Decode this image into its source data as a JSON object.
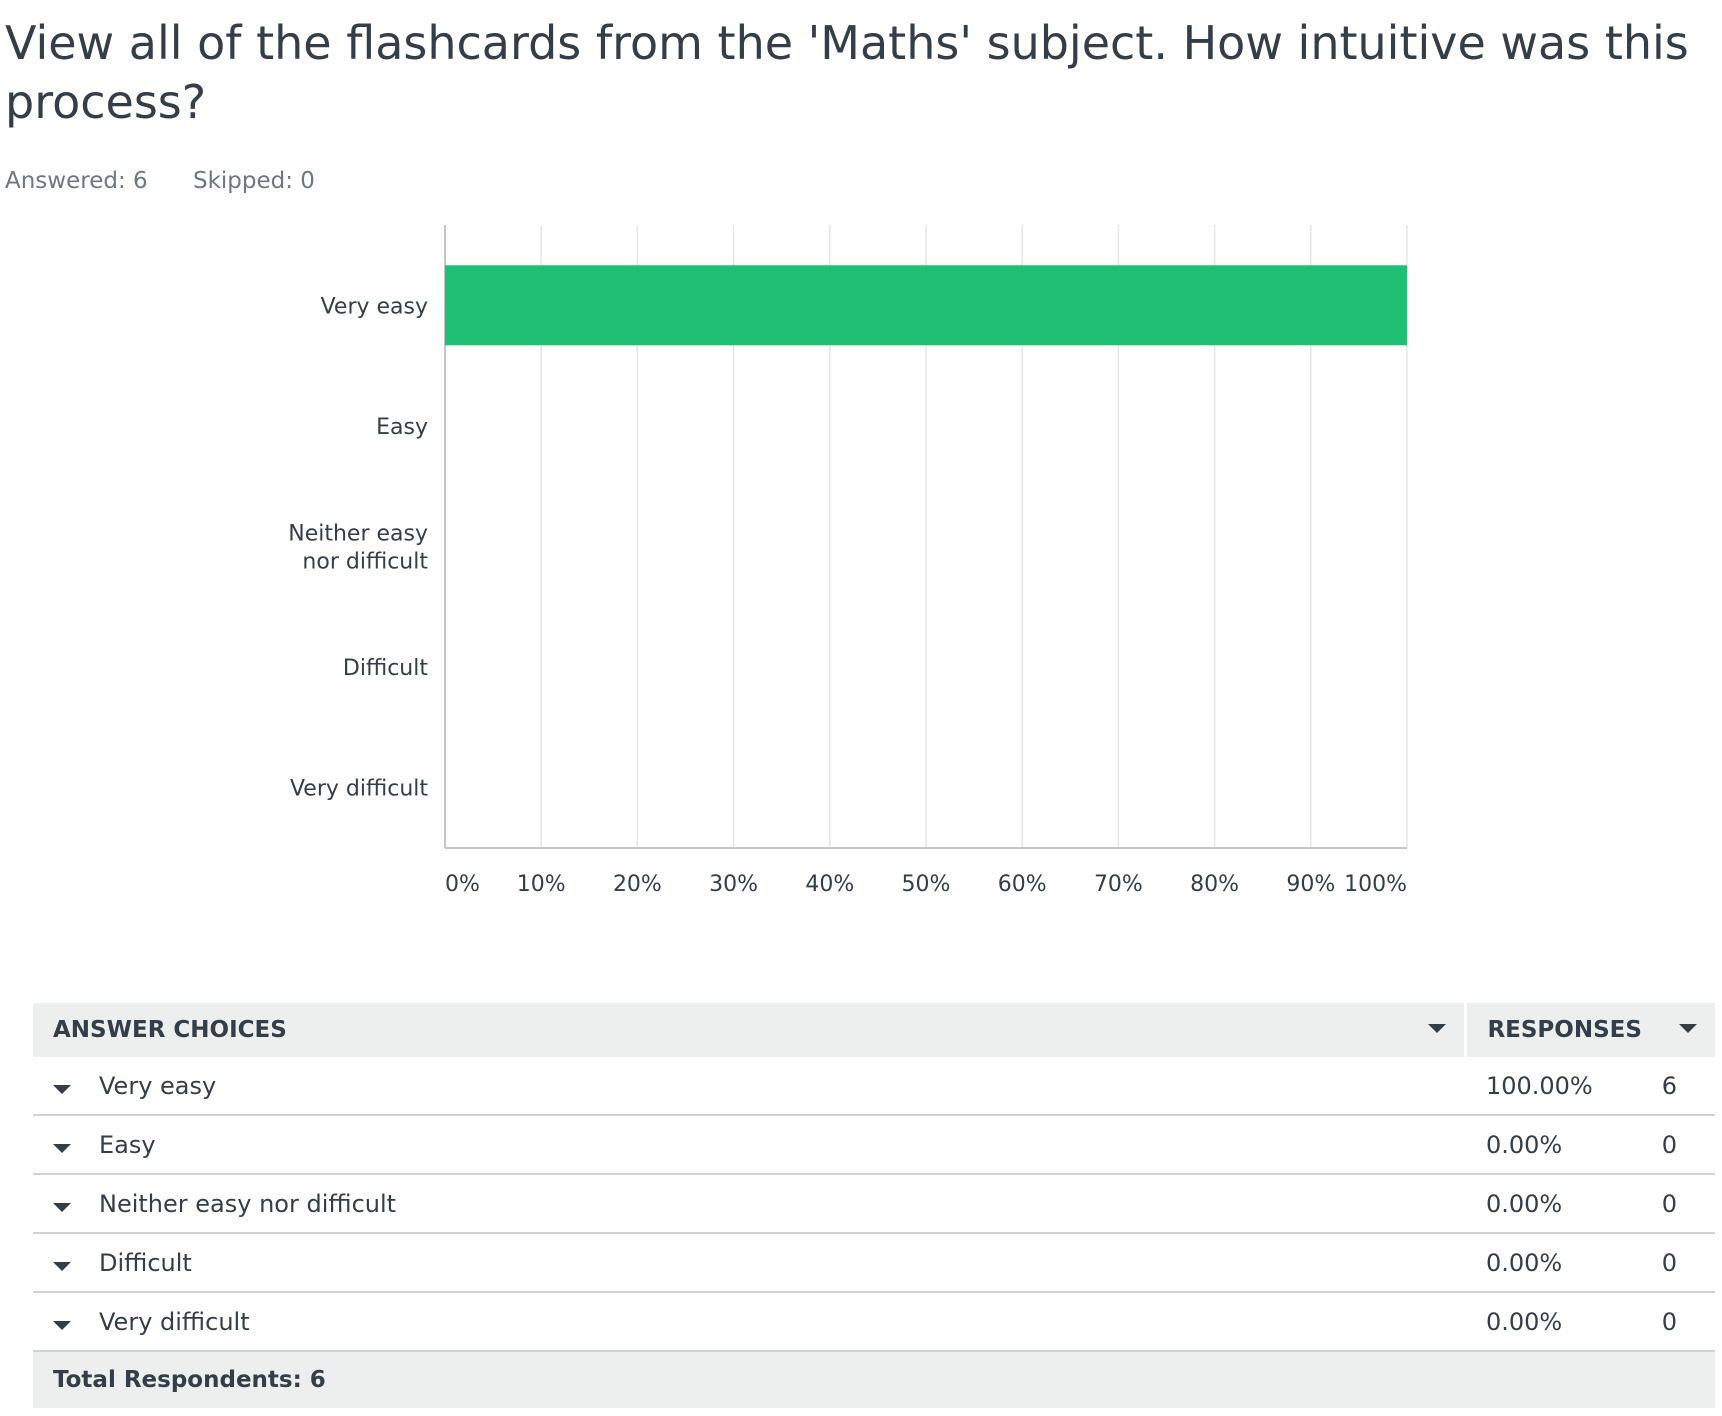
{
  "question": {
    "title": "View all of the flashcards from the 'Maths' subject. How intuitive was this process?",
    "answered": "Answered: 6",
    "skipped": "Skipped: 0"
  },
  "chart_data": {
    "type": "bar",
    "orientation": "horizontal",
    "categories": [
      [
        "Very easy"
      ],
      [
        "Easy"
      ],
      [
        "Neither easy",
        "nor difficult"
      ],
      [
        "Difficult"
      ],
      [
        "Very difficult"
      ]
    ],
    "values": [
      100,
      0,
      0,
      0,
      0
    ],
    "xlim": [
      0,
      100
    ],
    "ticks": [
      "0%",
      "10%",
      "20%",
      "30%",
      "40%",
      "50%",
      "60%",
      "70%",
      "80%",
      "90%",
      "100%"
    ],
    "grid": true,
    "bar_color": "#1fbf74",
    "grid_color": "#e4e6e7",
    "axis_color": "#c4c7c9"
  },
  "table": {
    "headers": {
      "choices": "ANSWER CHOICES",
      "responses": "RESPONSES"
    },
    "rows": [
      {
        "label": "Very easy",
        "percent": "100.00%",
        "count": "6"
      },
      {
        "label": "Easy",
        "percent": "0.00%",
        "count": "0"
      },
      {
        "label": "Neither easy nor difficult",
        "percent": "0.00%",
        "count": "0"
      },
      {
        "label": "Difficult",
        "percent": "0.00%",
        "count": "0"
      },
      {
        "label": "Very difficult",
        "percent": "0.00%",
        "count": "0"
      }
    ],
    "total": "Total Respondents: 6"
  }
}
